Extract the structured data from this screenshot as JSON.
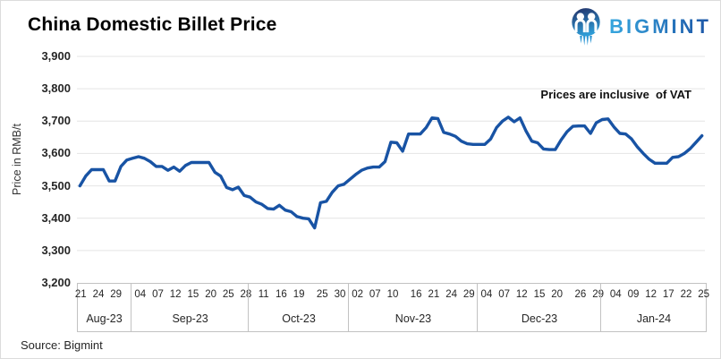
{
  "header": {
    "title": "China Domestic Billet Price",
    "logo_text": "BIGMINT"
  },
  "footer": {
    "source": "Source: Bigmint"
  },
  "chart_data": {
    "type": "line",
    "title": "China Domestic Billet Price",
    "series_name": "China Domestic Billet Price",
    "annotation": "Prices are inclusive  of VAT",
    "ylabel": "Price in RMB/t",
    "ylim": [
      3200,
      3900
    ],
    "grid": "horizontal",
    "line_color": "#1853A4",
    "y_ticks": [
      {
        "label": "3,900",
        "value": 3900
      },
      {
        "label": "3,800",
        "value": 3800
      },
      {
        "label": "3,700",
        "value": 3700
      },
      {
        "label": "3,600",
        "value": 3600
      },
      {
        "label": "3,500",
        "value": 3500
      },
      {
        "label": "3,400",
        "value": 3400
      },
      {
        "label": "3,300",
        "value": 3300
      },
      {
        "label": "3,200",
        "value": 3200
      }
    ],
    "x_axis": {
      "months": [
        {
          "label": "Aug-23",
          "key": "08",
          "tick_days": [
            "21",
            "24",
            "29"
          ]
        },
        {
          "label": "Sep-23",
          "key": "09",
          "tick_days": [
            "04",
            "07",
            "12",
            "15",
            "20",
            "25",
            "28"
          ]
        },
        {
          "label": "Oct-23",
          "key": "10",
          "tick_days": [
            "11",
            "16",
            "19",
            "25",
            "30"
          ]
        },
        {
          "label": "Nov-23",
          "key": "11",
          "tick_days": [
            "02",
            "07",
            "10",
            "16",
            "21",
            "24",
            "29"
          ]
        },
        {
          "label": "Dec-23",
          "key": "12",
          "tick_days": [
            "04",
            "07",
            "12",
            "15",
            "20",
            "26",
            "29"
          ]
        },
        {
          "label": "Jan-24",
          "key": "01",
          "tick_days": [
            "04",
            "09",
            "12",
            "17",
            "22",
            "25"
          ]
        }
      ]
    },
    "dates": [
      "08-21",
      "08-22",
      "08-23",
      "08-24",
      "08-25",
      "08-28",
      "08-29",
      "08-30",
      "08-31",
      "09-01",
      "09-04",
      "09-05",
      "09-06",
      "09-07",
      "09-08",
      "09-11",
      "09-12",
      "09-13",
      "09-14",
      "09-15",
      "09-18",
      "09-19",
      "09-20",
      "09-21",
      "09-22",
      "09-25",
      "09-26",
      "09-27",
      "09-28",
      "10-09",
      "10-10",
      "10-11",
      "10-12",
      "10-13",
      "10-16",
      "10-17",
      "10-18",
      "10-19",
      "10-20",
      "10-23",
      "10-24",
      "10-25",
      "10-26",
      "10-27",
      "10-30",
      "10-31",
      "11-01",
      "11-02",
      "11-03",
      "11-06",
      "11-07",
      "11-08",
      "11-09",
      "11-10",
      "11-13",
      "11-14",
      "11-15",
      "11-16",
      "11-17",
      "11-20",
      "11-21",
      "11-22",
      "11-23",
      "11-24",
      "11-27",
      "11-28",
      "11-29",
      "11-30",
      "12-01",
      "12-04",
      "12-05",
      "12-06",
      "12-07",
      "12-08",
      "12-11",
      "12-12",
      "12-13",
      "12-14",
      "12-15",
      "12-18",
      "12-19",
      "12-20",
      "12-21",
      "12-22",
      "12-25",
      "12-26",
      "12-27",
      "12-28",
      "12-29",
      "01-02",
      "01-03",
      "01-04",
      "01-05",
      "01-08",
      "01-09",
      "01-10",
      "01-11",
      "01-12",
      "01-15",
      "01-16",
      "01-17",
      "01-18",
      "01-19",
      "01-22",
      "01-23",
      "01-24",
      "01-25"
    ],
    "values": [
      3500,
      3530,
      3550,
      3550,
      3550,
      3515,
      3515,
      3560,
      3580,
      3585,
      3590,
      3585,
      3575,
      3560,
      3560,
      3548,
      3558,
      3545,
      3563,
      3572,
      3572,
      3572,
      3572,
      3542,
      3530,
      3495,
      3488,
      3496,
      3470,
      3465,
      3450,
      3443,
      3430,
      3428,
      3440,
      3425,
      3420,
      3405,
      3400,
      3398,
      3370,
      3448,
      3452,
      3480,
      3500,
      3505,
      3520,
      3535,
      3548,
      3555,
      3558,
      3558,
      3575,
      3635,
      3633,
      3607,
      3660,
      3660,
      3660,
      3680,
      3710,
      3708,
      3665,
      3660,
      3653,
      3638,
      3630,
      3628,
      3628,
      3628,
      3645,
      3680,
      3700,
      3712,
      3698,
      3710,
      3670,
      3638,
      3633,
      3614,
      3612,
      3612,
      3642,
      3667,
      3684,
      3685,
      3685,
      3662,
      3695,
      3705,
      3707,
      3682,
      3662,
      3660,
      3645,
      3620,
      3600,
      3582,
      3570,
      3570,
      3570,
      3588,
      3590,
      3600,
      3615,
      3635,
      3655
    ]
  }
}
